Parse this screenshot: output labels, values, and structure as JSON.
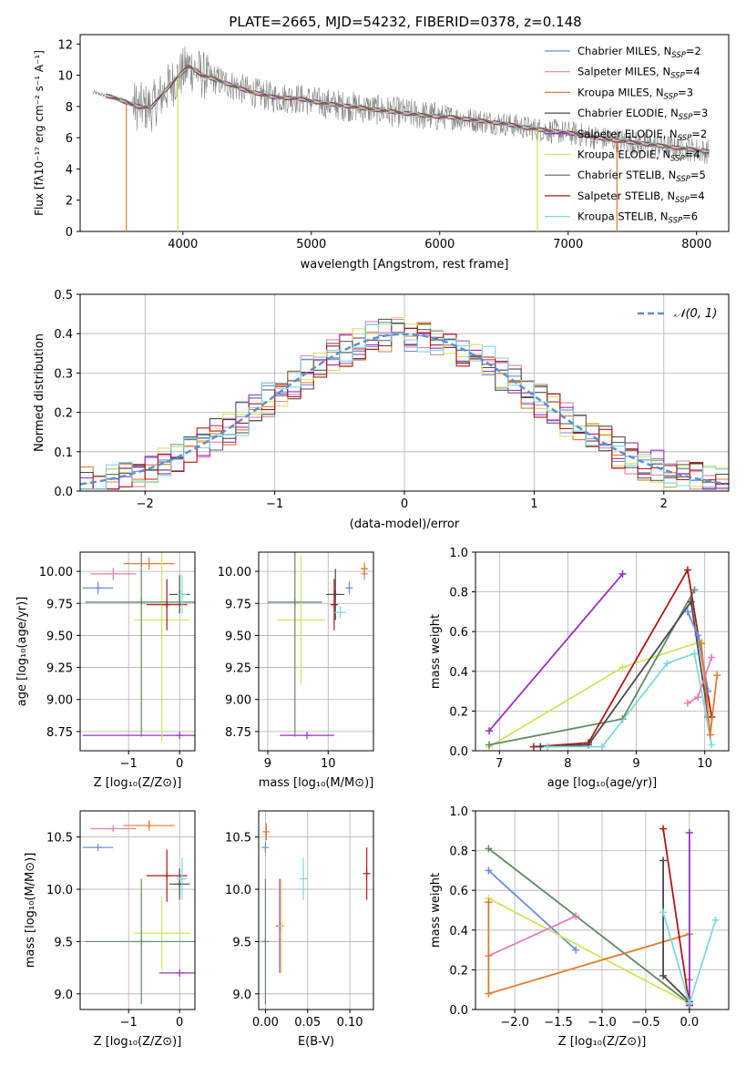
{
  "colors": {
    "blue": "#6a8edc",
    "pink": "#e27fb5",
    "orange": "#e07a2b",
    "darkgray": "#4a4a4a",
    "purple": "#9a2ec2",
    "lime": "#cfe55b",
    "slate": "#5e6660",
    "red": "#b01717",
    "cyan": "#7ed8df",
    "green": "#5f8a62",
    "grid": "#b0b0b0",
    "data_spectrum": "#808080"
  },
  "chart_data": [
    {
      "id": "spectrum",
      "type": "line",
      "title": "PLATE=2665, MJD=54232, FIBERID=0378, z=0.148",
      "xlabel": "wavelength [Angstrom, rest frame]",
      "ylabel": "Flux [fλ10⁻¹⁷ erg cm⁻² s⁻¹ A⁻¹]",
      "xlim": [
        3200,
        8250
      ],
      "ylim": [
        0,
        12.6
      ],
      "xticks": [
        "4000",
        "5000",
        "6000",
        "7000",
        "8000"
      ],
      "yticks": [
        "0",
        "2",
        "4",
        "6",
        "8",
        "10",
        "12"
      ],
      "grid": false,
      "legend_position": "top-right",
      "continuum_x": [
        3300,
        3450,
        3550,
        3650,
        3750,
        3850,
        3950,
        4050,
        4150,
        4300,
        4500,
        4700,
        4900,
        5100,
        5300,
        5500,
        5700,
        5900,
        6100,
        6300,
        6500,
        6700,
        6900,
        7100,
        7300,
        7500,
        7700,
        7900,
        8100
      ],
      "continuum_y": [
        8.9,
        8.6,
        8.3,
        8.0,
        7.9,
        8.9,
        9.8,
        10.6,
        10.0,
        9.6,
        9.0,
        8.6,
        8.5,
        8.2,
        8.0,
        7.8,
        7.6,
        7.4,
        7.3,
        7.1,
        6.9,
        6.6,
        6.4,
        6.2,
        5.9,
        5.7,
        5.5,
        5.3,
        5.1
      ],
      "series": [
        {
          "name": "Chabrier MILES, N_SSP=2",
          "color": "#6a8edc"
        },
        {
          "name": "Salpeter MILES, N_SSP=4",
          "color": "#e27fb5"
        },
        {
          "name": "Kroupa MILES, N_SSP=3",
          "color": "#e07a2b"
        },
        {
          "name": "Chabrier ELODIE, N_SSP=3",
          "color": "#4a4a4a"
        },
        {
          "name": "Salpeter ELODIE, N_SSP=2",
          "color": "#9a2ec2"
        },
        {
          "name": "Kroupa ELODIE, N_SSP=4",
          "color": "#cfe55b"
        },
        {
          "name": "Chabrier STELIB, N_SSP=5",
          "color": "#5e6660"
        },
        {
          "name": "Salpeter STELIB, N_SSP=4",
          "color": "#b01717"
        },
        {
          "name": "Kroupa STELIB, N_SSP=6",
          "color": "#7ed8df"
        }
      ]
    },
    {
      "id": "residuals",
      "type": "histogram",
      "xlabel": "(data-model)/error",
      "ylabel": "Normed distribution",
      "xlim": [
        -2.5,
        2.5
      ],
      "ylim": [
        0,
        0.5
      ],
      "xticks": [
        "−2",
        "−1",
        "0",
        "1",
        "2"
      ],
      "yticks": [
        "0.0",
        "0.1",
        "0.2",
        "0.3",
        "0.4",
        "0.5"
      ],
      "grid": true,
      "legend": "𝒩(0, 1)",
      "legend_position": "top-right",
      "reference_curve": "normal distribution, mean 0, sigma 1",
      "bin_width": 0.1
    },
    {
      "id": "age_vs_Z",
      "type": "scatter",
      "xlabel": "Z [log₁₀(Z/Z⊙)]",
      "ylabel": "age  [log₁₀(age/yr)]",
      "xlim": [
        -1.95,
        0.3
      ],
      "ylim": [
        8.6,
        10.15
      ],
      "xticks": [
        "−1",
        "0"
      ],
      "yticks": [
        "8.75",
        "9.00",
        "9.25",
        "9.50",
        "9.75",
        "10.00"
      ],
      "grid": true,
      "points": [
        {
          "color": "#6a8edc",
          "x": -1.6,
          "y": 9.87,
          "xerr": 0.3,
          "yerr": 0.05
        },
        {
          "color": "#e27fb5",
          "x": -1.3,
          "y": 9.98,
          "xerr": 0.45,
          "yerr": 0.05
        },
        {
          "color": "#e07a2b",
          "x": -0.6,
          "y": 10.06,
          "xerr": 0.5,
          "yerr": 0.05
        },
        {
          "color": "#4a4a4a",
          "x": 0.0,
          "y": 9.82,
          "xerr": 0.2,
          "yerr": 0.15
        },
        {
          "color": "#9a2ec2",
          "x": 0.0,
          "y": 8.72,
          "xerr": 1.9,
          "yerr": 0.0
        },
        {
          "color": "#cfe55b",
          "x": -0.35,
          "y": 9.62,
          "xerr": 0.55,
          "yerr": 0.95
        },
        {
          "color": "#5f8a62",
          "x": -0.75,
          "y": 9.76,
          "xerr": 1.1,
          "yerr": 1.05
        },
        {
          "color": "#b01717",
          "x": -0.25,
          "y": 9.74,
          "xerr": 0.4,
          "yerr": 0.2
        },
        {
          "color": "#7ed8df",
          "x": 0.05,
          "y": 9.82,
          "xerr": 0.1,
          "yerr": 0.15
        }
      ]
    },
    {
      "id": "age_vs_mass",
      "type": "scatter",
      "xlabel": "mass [log₁₀(M/M⊙)]",
      "xlim": [
        8.85,
        10.75
      ],
      "ylim": [
        8.6,
        10.15
      ],
      "xticks": [
        "9",
        "10"
      ],
      "yticks": [
        "8.75",
        "9.00",
        "9.25",
        "9.50",
        "9.75",
        "10.00"
      ],
      "grid": true,
      "points": [
        {
          "color": "#6a8edc",
          "x": 10.35,
          "y": 9.87,
          "xerr": 0.05,
          "yerr": 0.05
        },
        {
          "color": "#e27fb5",
          "x": 10.6,
          "y": 9.98,
          "xerr": 0.05,
          "yerr": 0.05
        },
        {
          "color": "#e07a2b",
          "x": 10.6,
          "y": 10.02,
          "xerr": 0.05,
          "yerr": 0.05
        },
        {
          "color": "#4a4a4a",
          "x": 10.12,
          "y": 9.82,
          "xerr": 0.15,
          "yerr": 0.2
        },
        {
          "color": "#9a2ec2",
          "x": 9.65,
          "y": 8.72,
          "xerr": 0.45,
          "yerr": 0.0
        },
        {
          "color": "#cfe55b",
          "x": 9.55,
          "y": 9.62,
          "xerr": 0.4,
          "yerr": 0.5
        },
        {
          "color": "#5f8a62",
          "x": 9.45,
          "y": 9.76,
          "xerr": 0.45,
          "yerr": 1.05
        },
        {
          "color": "#b01717",
          "x": 10.1,
          "y": 9.74,
          "xerr": 0.05,
          "yerr": 0.2
        },
        {
          "color": "#7ed8df",
          "x": 10.2,
          "y": 9.68,
          "xerr": 0.1,
          "yerr": 0.05
        }
      ]
    },
    {
      "id": "weight_vs_age",
      "type": "line",
      "xlabel": "age  [log₁₀(age/yr)]",
      "ylabel": "mass weight",
      "xlim": [
        6.65,
        10.35
      ],
      "ylim": [
        0,
        1
      ],
      "xticks": [
        "7",
        "8",
        "9",
        "10"
      ],
      "yticks": [
        "0.0",
        "0.2",
        "0.4",
        "0.6",
        "0.8",
        "1.0"
      ],
      "grid": true,
      "series": [
        {
          "color": "#9a2ec2",
          "x": [
            6.85,
            8.8
          ],
          "y": [
            0.1,
            0.89
          ]
        },
        {
          "color": "#cfe55b",
          "x": [
            6.85,
            8.8,
            9.95
          ],
          "y": [
            0.02,
            0.42,
            0.55
          ]
        },
        {
          "color": "#5f8a62",
          "x": [
            6.85,
            8.8,
            9.85
          ],
          "y": [
            0.03,
            0.16,
            0.81
          ]
        },
        {
          "color": "#b01717",
          "x": [
            7.5,
            8.3,
            9.75,
            10.1
          ],
          "y": [
            0.02,
            0.04,
            0.91,
            0.17
          ]
        },
        {
          "color": "#4a4a4a",
          "x": [
            7.6,
            8.3,
            9.8,
            10.05
          ],
          "y": [
            0.02,
            0.03,
            0.75,
            0.17
          ]
        },
        {
          "color": "#7ed8df",
          "x": [
            7.7,
            8.5,
            9.45,
            9.85,
            10.1
          ],
          "y": [
            0.02,
            0.02,
            0.44,
            0.49,
            0.03
          ]
        },
        {
          "color": "#6a8edc",
          "x": [
            9.75,
            9.9,
            10.05
          ],
          "y": [
            0.7,
            0.58,
            0.3
          ]
        },
        {
          "color": "#e27fb5",
          "x": [
            9.75,
            9.9,
            10.1
          ],
          "y": [
            0.24,
            0.27,
            0.47
          ]
        },
        {
          "color": "#e07a2b",
          "x": [
            9.95,
            10.08,
            10.18
          ],
          "y": [
            0.54,
            0.08,
            0.38
          ]
        }
      ]
    },
    {
      "id": "mass_vs_Z",
      "type": "scatter",
      "xlabel": "Z [log₁₀(Z/Z⊙)]",
      "ylabel": "mass [log₁₀(M/M⊙)]",
      "xlim": [
        -1.95,
        0.3
      ],
      "ylim": [
        8.85,
        10.75
      ],
      "xticks": [
        "−1",
        "0"
      ],
      "yticks": [
        "9.0",
        "9.5",
        "10.0",
        "10.5"
      ],
      "grid": true,
      "points": [
        {
          "color": "#6a8edc",
          "x": -1.6,
          "y": 10.4,
          "xerr": 0.3,
          "yerr": 0.02
        },
        {
          "color": "#e27fb5",
          "x": -1.3,
          "y": 10.58,
          "xerr": 0.45,
          "yerr": 0.03
        },
        {
          "color": "#e07a2b",
          "x": -0.6,
          "y": 10.61,
          "xerr": 0.5,
          "yerr": 0.05
        },
        {
          "color": "#4a4a4a",
          "x": 0.0,
          "y": 10.05,
          "xerr": 0.2,
          "yerr": 0.15
        },
        {
          "color": "#9a2ec2",
          "x": 0.0,
          "y": 9.2,
          "xerr": 0.4,
          "yerr": 0.0
        },
        {
          "color": "#cfe55b",
          "x": -0.35,
          "y": 9.58,
          "xerr": 0.55,
          "yerr": 0.35
        },
        {
          "color": "#5f8a62",
          "x": -0.75,
          "y": 9.5,
          "xerr": 1.1,
          "yerr": 0.6
        },
        {
          "color": "#b01717",
          "x": -0.25,
          "y": 10.13,
          "xerr": 0.4,
          "yerr": 0.25
        },
        {
          "color": "#7ed8df",
          "x": 0.05,
          "y": 10.1,
          "xerr": 0.1,
          "yerr": 0.2
        }
      ]
    },
    {
      "id": "mass_vs_EBV",
      "type": "scatter",
      "xlabel": "E(B-V)",
      "xlim": [
        -0.008,
        0.128
      ],
      "ylim": [
        8.85,
        10.75
      ],
      "xticks": [
        "0.00",
        "0.05",
        "0.10"
      ],
      "yticks": [
        "9.0",
        "9.5",
        "10.0",
        "10.5"
      ],
      "grid": true,
      "points": [
        {
          "color": "#6a8edc",
          "x": 0.0,
          "y": 10.4,
          "xerr": 0.0,
          "yerr": 0.05
        },
        {
          "color": "#e07a2b",
          "x": 0.001,
          "y": 10.55,
          "xerr": 0.0,
          "yerr": 0.08
        },
        {
          "color": "#5f8a62",
          "x": 0.0,
          "y": 9.5,
          "xerr": 0.0,
          "yerr": 0.6
        },
        {
          "color": "#9a2ec2",
          "x": 0.017,
          "y": 9.65,
          "xerr": 0.0,
          "yerr": 0.45
        },
        {
          "color": "#cfe55b",
          "x": 0.019,
          "y": 9.65,
          "xerr": 0.0,
          "yerr": 0.45
        },
        {
          "color": "#7ed8df",
          "x": 0.045,
          "y": 10.1,
          "xerr": 0.0,
          "yerr": 0.2
        },
        {
          "color": "#b01717",
          "x": 0.12,
          "y": 10.15,
          "xerr": 0.0,
          "yerr": 0.25
        }
      ]
    },
    {
      "id": "weight_vs_Z",
      "type": "line",
      "xlabel": "Z [log₁₀(Z/Z⊙)]",
      "ylabel": "mass weight",
      "xlim": [
        -2.45,
        0.45
      ],
      "ylim": [
        0,
        1
      ],
      "xticks": [
        "−2.0",
        "−1.5",
        "−1.0",
        "−0.5",
        "0.0"
      ],
      "yticks": [
        "0.0",
        "0.2",
        "0.4",
        "0.6",
        "0.8",
        "1.0"
      ],
      "grid": true,
      "series": [
        {
          "color": "#5f8a62",
          "x": [
            -2.3,
            0.0
          ],
          "y": [
            0.81,
            0.03
          ]
        },
        {
          "color": "#6a8edc",
          "x": [
            -2.3,
            -1.3
          ],
          "y": [
            0.7,
            0.3
          ]
        },
        {
          "color": "#cfe55b",
          "x": [
            -2.3,
            0.0
          ],
          "y": [
            0.56,
            0.03
          ]
        },
        {
          "color": "#e27fb5",
          "x": [
            -2.3,
            -1.3
          ],
          "y": [
            0.27,
            0.47
          ]
        },
        {
          "color": "#e07a2b",
          "x": [
            -2.3,
            -2.3,
            0.0,
            0.0
          ],
          "y": [
            0.54,
            0.08,
            0.38,
            0.15
          ]
        },
        {
          "color": "#b01717",
          "x": [
            -0.3,
            0.0
          ],
          "y": [
            0.91,
            0.02
          ]
        },
        {
          "color": "#4a4a4a",
          "x": [
            -0.3,
            -0.3,
            0.0
          ],
          "y": [
            0.75,
            0.17,
            0.04
          ]
        },
        {
          "color": "#9a2ec2",
          "x": [
            0.0,
            0.0
          ],
          "y": [
            0.89,
            0.02
          ]
        },
        {
          "color": "#7ed8df",
          "x": [
            -0.3,
            0.0,
            0.3
          ],
          "y": [
            0.49,
            0.03,
            0.45
          ]
        }
      ]
    }
  ]
}
